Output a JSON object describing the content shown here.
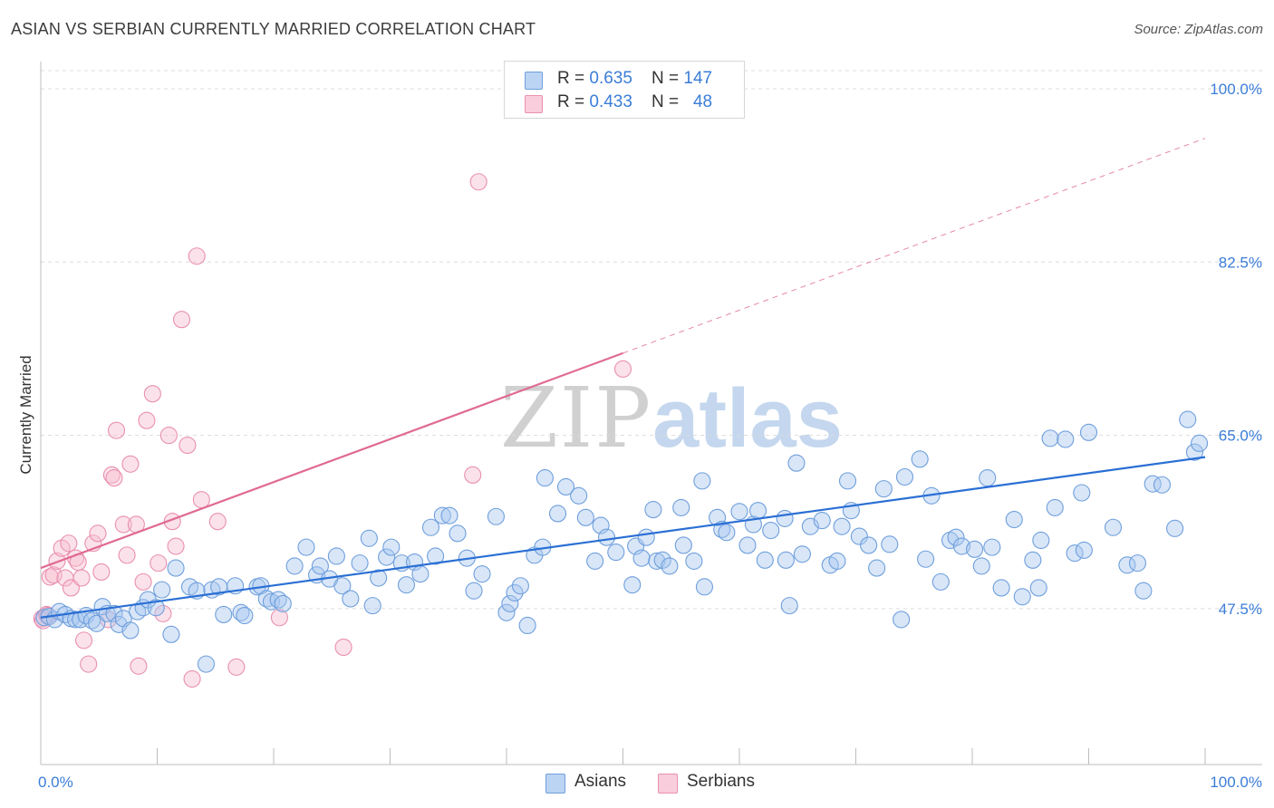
{
  "title": "ASIAN VS SERBIAN CURRENTLY MARRIED CORRELATION CHART",
  "source": "Source: ZipAtlas.com",
  "watermark": {
    "zip": "ZIP",
    "atlas": "atlas"
  },
  "legend": {
    "rows": [
      {
        "r_label": "R = ",
        "r_value": "0.635",
        "n_label": "N = ",
        "n_value": "147",
        "color": "#a9c8f0",
        "border": "#6f9fdc"
      },
      {
        "r_label": "R = ",
        "r_value": "0.433",
        "n_label": "N = ",
        "n_value": "48",
        "color": "#f7bfd1",
        "border": "#e98fb0"
      }
    ]
  },
  "bottom_legend": [
    {
      "label": "Asians",
      "color": "#a9c8f0",
      "border": "#6f9fdc"
    },
    {
      "label": "Serbians",
      "color": "#f7bfd1",
      "border": "#e98fb0"
    }
  ],
  "chart_data": {
    "type": "scatter",
    "title": "ASIAN VS SERBIAN CURRENTLY MARRIED CORRELATION CHART",
    "xlabel": "",
    "ylabel": "Currently Married",
    "xlim": [
      0,
      100
    ],
    "ylim": [
      29.5,
      102
    ],
    "x_tick_labels": [
      {
        "value": 0,
        "label": "0.0%"
      },
      {
        "value": 100,
        "label": "100.0%"
      }
    ],
    "y_tick_labels": [
      {
        "value": 47.5,
        "label": "47.5%"
      },
      {
        "value": 65.0,
        "label": "65.0%"
      },
      {
        "value": 82.5,
        "label": "82.5%"
      },
      {
        "value": 100.0,
        "label": "100.0%"
      }
    ],
    "grid": true,
    "series": [
      {
        "name": "Asians",
        "color": "#6f9fdc",
        "fill": "rgba(169,200,240,0.45)",
        "trend": {
          "x": [
            0,
            100
          ],
          "y": [
            46.6,
            62.8
          ],
          "color": "#2a6fd4"
        },
        "points": [
          [
            0.3,
            46.6
          ],
          [
            0.7,
            46.7
          ],
          [
            1.2,
            46.4
          ],
          [
            1.6,
            47.2
          ],
          [
            2.1,
            46.9
          ],
          [
            2.6,
            46.5
          ],
          [
            3.0,
            46.4
          ],
          [
            3.4,
            46.4
          ],
          [
            3.9,
            46.8
          ],
          [
            4.4,
            46.3
          ],
          [
            4.8,
            46.0
          ],
          [
            5.3,
            47.7
          ],
          [
            5.7,
            47.0
          ],
          [
            6.3,
            47.0
          ],
          [
            6.7,
            45.9
          ],
          [
            7.1,
            46.5
          ],
          [
            7.7,
            45.3
          ],
          [
            8.3,
            47.2
          ],
          [
            8.8,
            47.6
          ],
          [
            9.2,
            48.4
          ],
          [
            9.9,
            47.6
          ],
          [
            10.4,
            49.4
          ],
          [
            11.2,
            44.9
          ],
          [
            11.6,
            51.6
          ],
          [
            12.8,
            49.7
          ],
          [
            13.4,
            49.3
          ],
          [
            14.2,
            41.9
          ],
          [
            14.7,
            49.4
          ],
          [
            15.3,
            49.7
          ],
          [
            15.7,
            46.9
          ],
          [
            16.7,
            49.8
          ],
          [
            17.2,
            47.1
          ],
          [
            17.5,
            46.8
          ],
          [
            18.6,
            49.7
          ],
          [
            18.9,
            49.8
          ],
          [
            19.4,
            48.5
          ],
          [
            19.8,
            48.2
          ],
          [
            20.4,
            48.4
          ],
          [
            20.8,
            48.0
          ],
          [
            21.8,
            51.8
          ],
          [
            22.8,
            53.7
          ],
          [
            23.7,
            50.9
          ],
          [
            24.0,
            51.8
          ],
          [
            24.8,
            50.5
          ],
          [
            25.4,
            52.8
          ],
          [
            25.9,
            49.8
          ],
          [
            26.6,
            48.5
          ],
          [
            27.4,
            52.1
          ],
          [
            28.2,
            54.6
          ],
          [
            28.5,
            47.8
          ],
          [
            29.0,
            50.6
          ],
          [
            29.7,
            52.7
          ],
          [
            30.1,
            53.7
          ],
          [
            31.0,
            52.1
          ],
          [
            31.4,
            49.9
          ],
          [
            32.1,
            52.2
          ],
          [
            32.6,
            51.0
          ],
          [
            33.5,
            55.7
          ],
          [
            33.9,
            52.8
          ],
          [
            34.5,
            56.9
          ],
          [
            35.1,
            56.9
          ],
          [
            35.8,
            55.1
          ],
          [
            36.6,
            52.6
          ],
          [
            37.2,
            49.3
          ],
          [
            37.9,
            51.0
          ],
          [
            39.1,
            56.8
          ],
          [
            40.0,
            47.1
          ],
          [
            40.3,
            48.0
          ],
          [
            40.7,
            49.1
          ],
          [
            41.2,
            49.8
          ],
          [
            41.8,
            45.8
          ],
          [
            42.4,
            52.9
          ],
          [
            43.1,
            53.7
          ],
          [
            43.3,
            60.7
          ],
          [
            44.4,
            57.1
          ],
          [
            45.1,
            59.8
          ],
          [
            46.2,
            58.9
          ],
          [
            46.8,
            56.7
          ],
          [
            47.6,
            52.3
          ],
          [
            48.1,
            55.9
          ],
          [
            48.6,
            54.7
          ],
          [
            49.4,
            53.2
          ],
          [
            50.8,
            49.9
          ],
          [
            51.1,
            53.8
          ],
          [
            51.6,
            52.6
          ],
          [
            52.0,
            54.7
          ],
          [
            52.6,
            57.5
          ],
          [
            52.9,
            52.3
          ],
          [
            53.4,
            52.4
          ],
          [
            54.0,
            51.8
          ],
          [
            55.0,
            57.7
          ],
          [
            55.2,
            53.9
          ],
          [
            56.1,
            52.3
          ],
          [
            56.8,
            60.4
          ],
          [
            57.0,
            49.7
          ],
          [
            58.1,
            56.7
          ],
          [
            58.5,
            55.5
          ],
          [
            58.9,
            55.2
          ],
          [
            60.0,
            57.3
          ],
          [
            60.7,
            53.9
          ],
          [
            61.2,
            56.0
          ],
          [
            61.6,
            57.4
          ],
          [
            62.2,
            52.4
          ],
          [
            62.7,
            55.4
          ],
          [
            63.9,
            56.6
          ],
          [
            64.0,
            52.4
          ],
          [
            64.3,
            47.8
          ],
          [
            64.9,
            62.2
          ],
          [
            65.4,
            53.0
          ],
          [
            66.1,
            55.8
          ],
          [
            67.1,
            56.4
          ],
          [
            67.8,
            51.9
          ],
          [
            68.4,
            52.3
          ],
          [
            68.8,
            55.8
          ],
          [
            69.3,
            60.4
          ],
          [
            69.6,
            57.4
          ],
          [
            70.3,
            54.8
          ],
          [
            71.1,
            53.9
          ],
          [
            71.8,
            51.6
          ],
          [
            72.4,
            59.6
          ],
          [
            72.9,
            54.0
          ],
          [
            73.9,
            46.4
          ],
          [
            74.2,
            60.8
          ],
          [
            75.5,
            62.6
          ],
          [
            76.0,
            52.5
          ],
          [
            76.5,
            58.9
          ],
          [
            77.3,
            50.2
          ],
          [
            78.1,
            54.4
          ],
          [
            78.6,
            54.7
          ],
          [
            79.1,
            53.8
          ],
          [
            80.2,
            53.5
          ],
          [
            80.8,
            51.8
          ],
          [
            81.3,
            60.7
          ],
          [
            81.7,
            53.7
          ],
          [
            82.5,
            49.6
          ],
          [
            83.6,
            56.5
          ],
          [
            84.3,
            48.7
          ],
          [
            85.2,
            52.4
          ],
          [
            85.7,
            49.6
          ],
          [
            85.9,
            54.4
          ],
          [
            86.7,
            64.7
          ],
          [
            87.1,
            57.7
          ],
          [
            88.0,
            64.6
          ],
          [
            88.8,
            53.1
          ],
          [
            89.4,
            59.2
          ],
          [
            89.6,
            53.4
          ],
          [
            90.0,
            65.3
          ],
          [
            92.1,
            55.7
          ],
          [
            93.3,
            51.9
          ],
          [
            94.2,
            52.1
          ],
          [
            94.7,
            49.3
          ],
          [
            95.5,
            60.1
          ],
          [
            96.3,
            60.0
          ],
          [
            97.4,
            55.6
          ],
          [
            98.5,
            66.6
          ],
          [
            99.1,
            63.3
          ],
          [
            99.5,
            64.2
          ]
        ]
      },
      {
        "name": "Serbians",
        "color": "#e98fb0",
        "fill": "rgba(247,191,209,0.45)",
        "trend": {
          "x": [
            0,
            50
          ],
          "y": [
            51.6,
            73.3
          ],
          "color": "#e06a93",
          "dashed_to": [
            100,
            95.0
          ]
        },
        "points": [
          [
            0.1,
            46.5
          ],
          [
            0.5,
            46.9
          ],
          [
            0.8,
            50.7
          ],
          [
            1.1,
            50.9
          ],
          [
            1.4,
            52.3
          ],
          [
            1.8,
            53.6
          ],
          [
            2.1,
            50.6
          ],
          [
            2.4,
            54.1
          ],
          [
            2.6,
            49.6
          ],
          [
            3.0,
            52.6
          ],
          [
            3.2,
            52.2
          ],
          [
            3.5,
            50.6
          ],
          [
            3.7,
            44.3
          ],
          [
            4.1,
            41.9
          ],
          [
            4.5,
            54.1
          ],
          [
            4.9,
            55.1
          ],
          [
            5.2,
            51.2
          ],
          [
            5.8,
            46.4
          ],
          [
            6.1,
            61.0
          ],
          [
            6.3,
            60.7
          ],
          [
            6.5,
            65.5
          ],
          [
            7.1,
            56.0
          ],
          [
            7.4,
            52.9
          ],
          [
            7.7,
            62.1
          ],
          [
            8.2,
            56.0
          ],
          [
            8.4,
            41.7
          ],
          [
            8.8,
            50.2
          ],
          [
            9.1,
            66.5
          ],
          [
            9.6,
            69.2
          ],
          [
            10.1,
            52.1
          ],
          [
            10.5,
            47.0
          ],
          [
            11.0,
            65.0
          ],
          [
            11.3,
            56.3
          ],
          [
            11.6,
            53.8
          ],
          [
            12.1,
            76.7
          ],
          [
            12.6,
            64.0
          ],
          [
            13.0,
            40.4
          ],
          [
            13.4,
            83.1
          ],
          [
            13.8,
            58.5
          ],
          [
            15.2,
            56.3
          ],
          [
            16.8,
            41.6
          ],
          [
            20.5,
            46.6
          ],
          [
            26.0,
            43.6
          ],
          [
            37.1,
            61.0
          ],
          [
            37.6,
            90.6
          ],
          [
            50.0,
            71.7
          ],
          [
            0.2,
            46.3
          ],
          [
            0.6,
            46.8
          ]
        ]
      }
    ]
  }
}
